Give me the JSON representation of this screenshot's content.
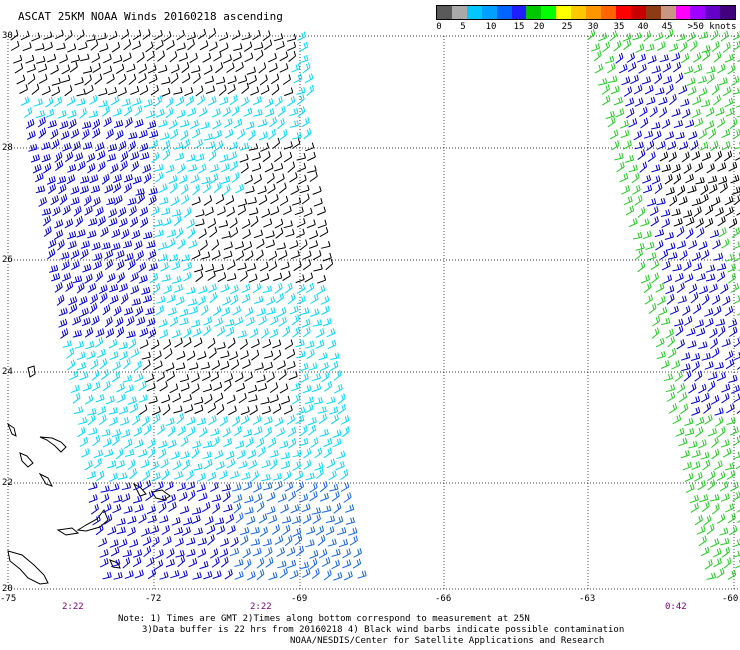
{
  "title": "ASCAT 25KM NOAA Winds 20160218 ascending",
  "legend": {
    "colors": [
      "#5a5a5a",
      "#a9a9a9",
      "#00c8ff",
      "#00a0ff",
      "#0064ff",
      "#1e1eff",
      "#00c800",
      "#00ff00",
      "#ffff00",
      "#ffc800",
      "#ff9600",
      "#ff6400",
      "#ff0000",
      "#c80000",
      "#8c3c14",
      "#c89682",
      "#ff00ff",
      "#a000ff",
      "#6400c8",
      "#400080"
    ],
    "labels": [
      "0",
      "5",
      "10",
      "15",
      "20",
      "25",
      "30",
      "35",
      "40",
      "45",
      ">50 knots"
    ]
  },
  "lat_labels": [
    "30",
    "28",
    "26",
    "24",
    "22",
    "20"
  ],
  "lon_labels": [
    "-75",
    "-72",
    "-69",
    "-66",
    "-63",
    "-60"
  ],
  "time_labels": [
    "2:22",
    "2:22",
    "0:42"
  ],
  "notes": [
    "Note: 1) Times are GMT 2)Times along bottom correspond to measurement at 25N",
    "3)Data buffer is 22 hrs from 20160218 4) Black wind barbs indicate possible contamination",
    "NOAA/NESDIS/Center for Satellite Applications and Research"
  ],
  "colors": {
    "black": "#000000",
    "cyan": "#00d8ff",
    "blue": "#0000cc",
    "green": "#22cc22",
    "time": "#800080",
    "grid": "#000000"
  }
}
